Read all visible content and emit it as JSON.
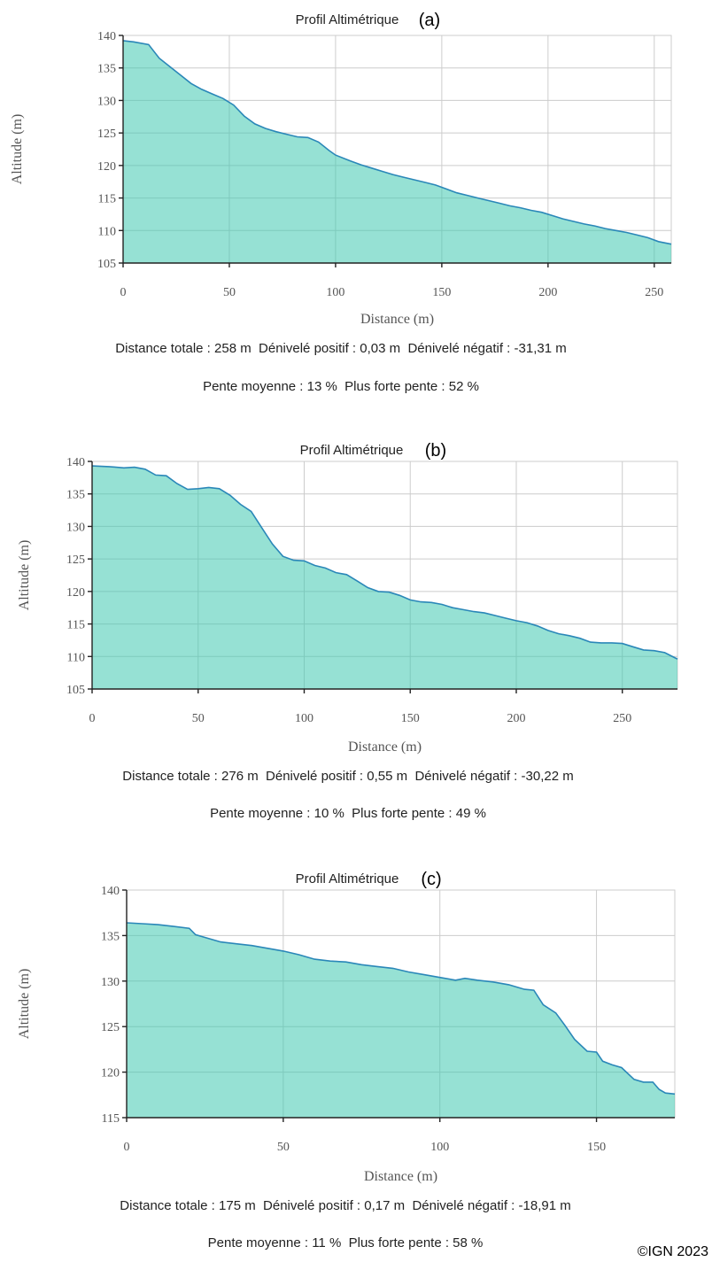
{
  "chart_data": [
    {
      "type": "area",
      "title": "Profil Altimétrique",
      "tag": "(a)",
      "xlabel": "Distance (m)",
      "ylabel": "Altitude (m)",
      "xlim": [
        0,
        258
      ],
      "ylim": [
        105,
        140
      ],
      "xticks": [
        0,
        50,
        100,
        150,
        200,
        250
      ],
      "yticks": [
        105,
        110,
        115,
        120,
        125,
        130,
        135,
        140
      ],
      "grid": true,
      "color": "#40c9b0",
      "x": [
        0,
        5,
        12,
        17,
        22,
        27,
        32,
        37,
        42,
        47,
        52,
        57,
        62,
        67,
        72,
        77,
        82,
        87,
        92,
        97,
        100,
        107,
        112,
        117,
        122,
        127,
        132,
        137,
        142,
        147,
        152,
        157,
        162,
        167,
        172,
        177,
        182,
        187,
        192,
        197,
        202,
        207,
        212,
        217,
        222,
        227,
        232,
        237,
        242,
        247,
        252,
        258
      ],
      "y": [
        139.2,
        139.0,
        138.6,
        136.5,
        135.2,
        133.9,
        132.6,
        131.7,
        131.0,
        130.3,
        129.3,
        127.6,
        126.4,
        125.7,
        125.2,
        124.8,
        124.4,
        124.3,
        123.6,
        122.3,
        121.6,
        120.7,
        120.1,
        119.6,
        119.1,
        118.6,
        118.2,
        117.8,
        117.4,
        117.0,
        116.4,
        115.8,
        115.4,
        115.0,
        114.6,
        114.2,
        113.8,
        113.5,
        113.1,
        112.8,
        112.3,
        111.8,
        111.4,
        111.0,
        110.7,
        110.3,
        110.0,
        109.7,
        109.3,
        108.9,
        108.3,
        107.9
      ],
      "stats": "Distance totale : 258 m  Dénivelé positif : 0,03 m  Dénivelé négatif : -31,31 m",
      "slope": "Pente moyenne : 13 %  Plus forte pente : 52 %"
    },
    {
      "type": "area",
      "title": "Profil Altimétrique",
      "tag": "(b)",
      "xlabel": "Distance (m)",
      "ylabel": "Altitude (m)",
      "xlim": [
        0,
        276
      ],
      "ylim": [
        105,
        140
      ],
      "xticks": [
        0,
        50,
        100,
        150,
        200,
        250
      ],
      "yticks": [
        105,
        110,
        115,
        120,
        125,
        130,
        135,
        140
      ],
      "grid": true,
      "color": "#40c9b0",
      "x": [
        0,
        8,
        15,
        20,
        25,
        30,
        35,
        40,
        45,
        50,
        55,
        60,
        65,
        70,
        75,
        80,
        85,
        90,
        95,
        100,
        105,
        110,
        115,
        120,
        125,
        130,
        135,
        140,
        145,
        150,
        155,
        160,
        165,
        170,
        175,
        180,
        185,
        190,
        195,
        200,
        205,
        210,
        215,
        220,
        225,
        230,
        235,
        240,
        245,
        250,
        255,
        260,
        265,
        270,
        276
      ],
      "y": [
        139.3,
        139.2,
        139.0,
        139.1,
        138.8,
        137.9,
        137.8,
        136.6,
        135.7,
        135.8,
        136.0,
        135.8,
        134.8,
        133.4,
        132.3,
        129.8,
        127.3,
        125.4,
        124.8,
        124.7,
        124.0,
        123.6,
        122.9,
        122.6,
        121.6,
        120.6,
        120.0,
        119.9,
        119.4,
        118.7,
        118.4,
        118.3,
        118.0,
        117.5,
        117.2,
        116.9,
        116.7,
        116.3,
        115.9,
        115.5,
        115.2,
        114.7,
        114.0,
        113.5,
        113.2,
        112.8,
        112.2,
        112.1,
        112.1,
        112.0,
        111.5,
        111.0,
        110.9,
        110.6,
        109.6
      ],
      "stats": "Distance totale : 276 m  Dénivelé positif : 0,55 m  Dénivelé négatif : -30,22 m",
      "slope": "Pente moyenne : 10 %  Plus forte pente : 49 %"
    },
    {
      "type": "area",
      "title": "Profil Altimétrique",
      "tag": "(c)",
      "xlabel": "Distance (m)",
      "ylabel": "Altitude (m)",
      "xlim": [
        0,
        175
      ],
      "ylim": [
        115,
        140
      ],
      "xticks": [
        0,
        50,
        100,
        150
      ],
      "yticks": [
        115,
        120,
        125,
        130,
        135,
        140
      ],
      "grid": true,
      "color": "#40c9b0",
      "x": [
        0,
        5,
        10,
        15,
        20,
        22,
        25,
        30,
        35,
        40,
        45,
        50,
        55,
        60,
        65,
        70,
        75,
        80,
        85,
        90,
        95,
        100,
        105,
        108,
        112,
        117,
        122,
        127,
        130,
        133,
        137,
        140,
        143,
        147,
        150,
        152,
        155,
        158,
        162,
        165,
        168,
        170,
        172,
        175
      ],
      "y": [
        136.4,
        136.3,
        136.2,
        136.0,
        135.8,
        135.1,
        134.8,
        134.3,
        134.1,
        133.9,
        133.6,
        133.3,
        132.9,
        132.4,
        132.2,
        132.1,
        131.8,
        131.6,
        131.4,
        131.0,
        130.7,
        130.4,
        130.1,
        130.3,
        130.1,
        129.9,
        129.6,
        129.1,
        129.0,
        127.4,
        126.5,
        125.1,
        123.6,
        122.3,
        122.2,
        121.2,
        120.8,
        120.5,
        119.2,
        118.9,
        118.9,
        118.1,
        117.7,
        117.6
      ],
      "stats": "Distance totale : 175 m  Dénivelé positif : 0,17 m  Dénivelé négatif : -18,91 m",
      "slope": "Pente moyenne : 11 %  Plus forte pente : 58 %"
    }
  ],
  "credit": "©IGN 2023"
}
